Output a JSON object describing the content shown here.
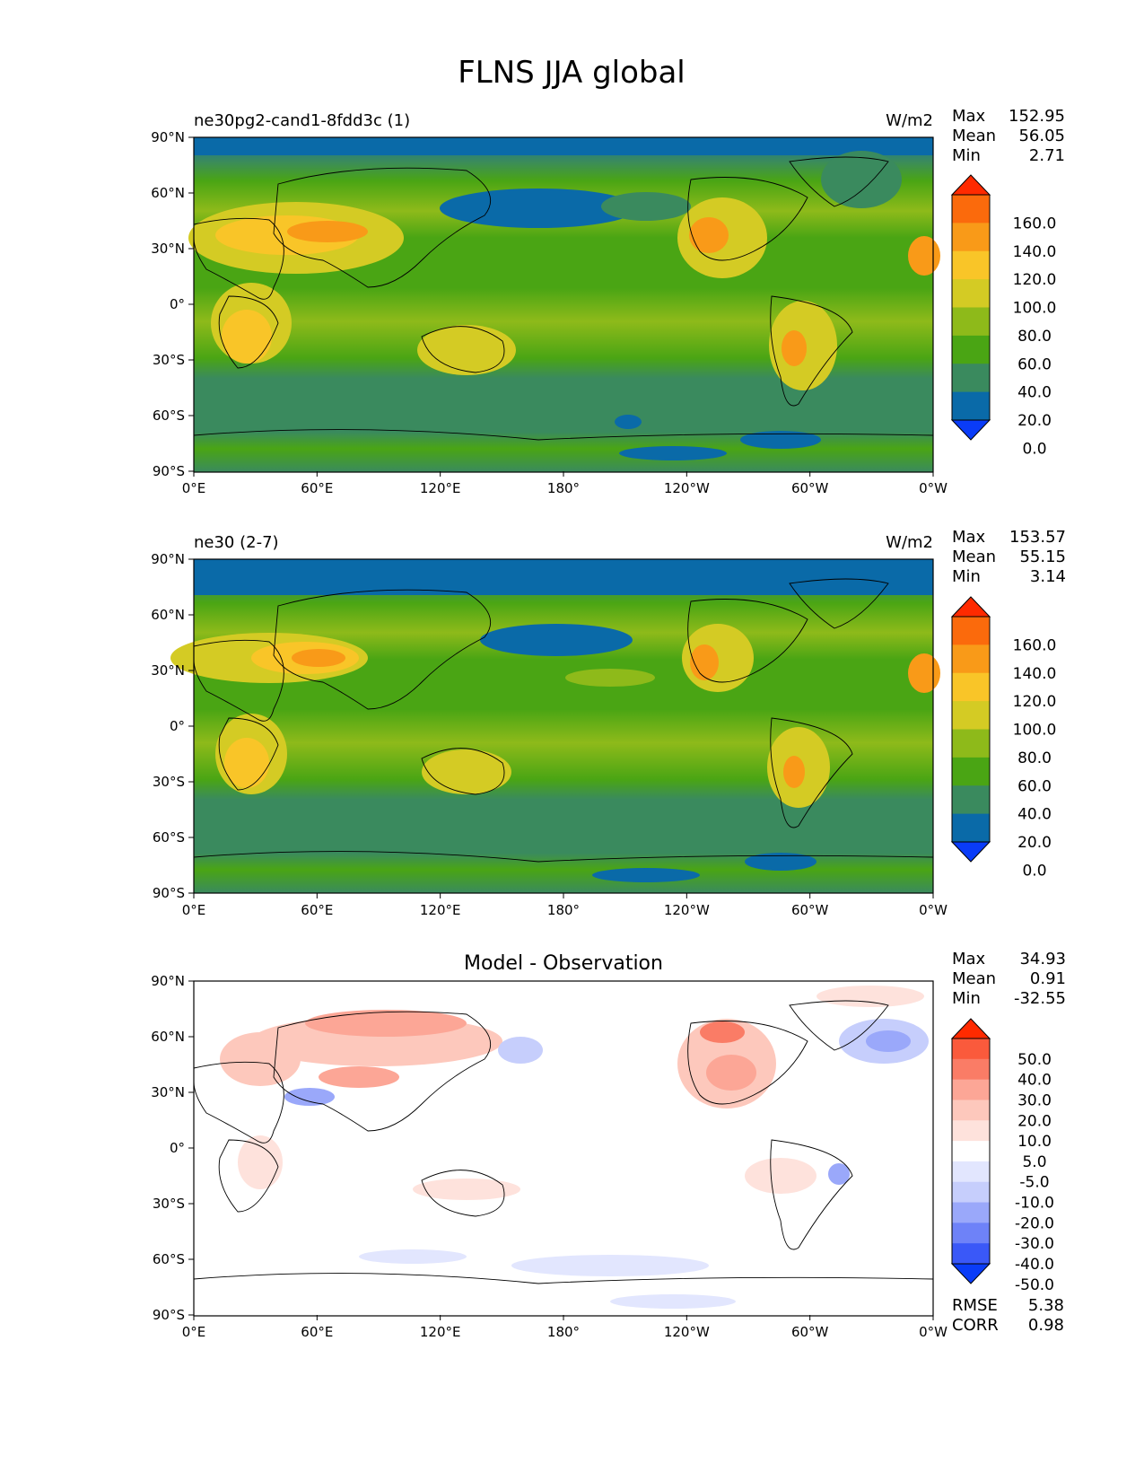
{
  "figure_title": "FLNS JJA global",
  "chart_data": [
    {
      "type": "heatmap",
      "title": "ne30pg2-cand1-8fdd3c (1)",
      "units": "W/m2",
      "stats": {
        "max_label": "Max",
        "max": "152.95",
        "mean_label": "Mean",
        "mean": "56.05",
        "min_label": "Min",
        "min": "2.71"
      },
      "x_ticks": [
        "0°E",
        "60°E",
        "120°E",
        "180°",
        "120°W",
        "60°W",
        "0°W"
      ],
      "y_ticks": [
        "90°N",
        "60°N",
        "30°N",
        "0°",
        "30°S",
        "60°S",
        "90°S"
      ],
      "colorbar": {
        "levels": [
          "160.0",
          "140.0",
          "120.0",
          "100.0",
          "80.0",
          "60.0",
          "40.0",
          "20.0",
          "0.0"
        ],
        "colors": [
          "#ff2a00",
          "#fb6a0c",
          "#f99a18",
          "#f9c528",
          "#d4cb24",
          "#8eba1a",
          "#4aa514",
          "#3a8a5e",
          "#0a6aa8",
          "#0a3cf8"
        ]
      }
    },
    {
      "type": "heatmap",
      "title": "ne30 (2-7)",
      "units": "W/m2",
      "stats": {
        "max_label": "Max",
        "max": "153.57",
        "mean_label": "Mean",
        "mean": "55.15",
        "min_label": "Min",
        "min": "3.14"
      },
      "x_ticks": [
        "0°E",
        "60°E",
        "120°E",
        "180°",
        "120°W",
        "60°W",
        "0°W"
      ],
      "y_ticks": [
        "90°N",
        "60°N",
        "30°N",
        "0°",
        "30°S",
        "60°S",
        "90°S"
      ],
      "colorbar": {
        "levels": [
          "160.0",
          "140.0",
          "120.0",
          "100.0",
          "80.0",
          "60.0",
          "40.0",
          "20.0",
          "0.0"
        ],
        "colors": [
          "#ff2a00",
          "#fb6a0c",
          "#f99a18",
          "#f9c528",
          "#d4cb24",
          "#8eba1a",
          "#4aa514",
          "#3a8a5e",
          "#0a6aa8",
          "#0a3cf8"
        ]
      }
    },
    {
      "type": "heatmap",
      "title": "Model - Observation",
      "stats": {
        "max_label": "Max",
        "max": "34.93",
        "mean_label": "Mean",
        "mean": "0.91",
        "min_label": "Min",
        "min": "-32.55"
      },
      "rmse_label": "RMSE",
      "rmse": "5.38",
      "corr_label": "CORR",
      "corr": "0.98",
      "x_ticks": [
        "0°E",
        "60°E",
        "120°E",
        "180°",
        "120°W",
        "60°W",
        "0°W"
      ],
      "y_ticks": [
        "90°N",
        "60°N",
        "30°N",
        "0°",
        "30°S",
        "60°S",
        "90°S"
      ],
      "colorbar": {
        "levels": [
          "50.0",
          "40.0",
          "30.0",
          "20.0",
          "10.0",
          "5.0",
          "-5.0",
          "-10.0",
          "-20.0",
          "-30.0",
          "-40.0",
          "-50.0"
        ],
        "colors": [
          "#ff2a00",
          "#fa5a3c",
          "#fa7c66",
          "#fca696",
          "#fdc8bc",
          "#fee2dc",
          "#ffffff",
          "#e2e6fe",
          "#c6cefc",
          "#9aa8fa",
          "#6e82f8",
          "#3a58f8",
          "#0a3cf8"
        ]
      }
    }
  ]
}
